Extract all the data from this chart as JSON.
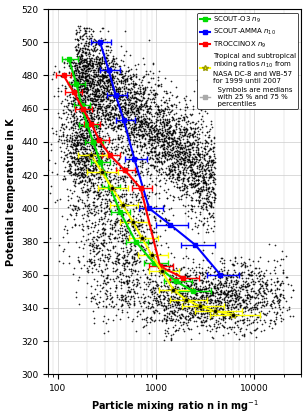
{
  "title": "",
  "xlabel": "Particle mixing ratio n in mg$^{-1}$",
  "ylabel": "Potential temperature in K",
  "xlim_log": [
    80,
    30000
  ],
  "ylim": [
    300,
    520
  ],
  "yticks": [
    300,
    320,
    340,
    360,
    380,
    400,
    420,
    440,
    460,
    480,
    500,
    520
  ],
  "background_color": "#ffffff",
  "grid_color": "#cccccc",
  "scout_o3": {
    "color": "#00dd00",
    "n": [
      130,
      155,
      175,
      200,
      230,
      270,
      340,
      430,
      620,
      950,
      1600,
      2400
    ],
    "theta": [
      490,
      475,
      462,
      450,
      440,
      428,
      413,
      398,
      380,
      367,
      356,
      350
    ],
    "xerr_lo": [
      20,
      25,
      30,
      35,
      40,
      50,
      60,
      80,
      120,
      200,
      400,
      700
    ],
    "xerr_hi": [
      30,
      35,
      40,
      50,
      60,
      70,
      90,
      120,
      200,
      380,
      700,
      1200
    ]
  },
  "scout_amma": {
    "color": "#0000ff",
    "n": [
      270,
      330,
      390,
      470,
      600,
      850,
      1400,
      2500,
      4500
    ],
    "theta": [
      500,
      483,
      468,
      453,
      430,
      400,
      390,
      378,
      360
    ],
    "xerr_lo": [
      50,
      60,
      70,
      80,
      120,
      180,
      400,
      700,
      1200
    ],
    "xerr_hi": [
      80,
      100,
      120,
      140,
      200,
      320,
      700,
      1500,
      2500
    ]
  },
  "troccinox": {
    "color": "#ff0000",
    "n": [
      115,
      145,
      180,
      220,
      265,
      340,
      480,
      700,
      1100,
      1900
    ],
    "theta": [
      480,
      470,
      460,
      451,
      441,
      432,
      423,
      412,
      365,
      358
    ],
    "xerr_lo": [
      18,
      25,
      30,
      35,
      45,
      60,
      90,
      130,
      250,
      500
    ],
    "xerr_hi": [
      22,
      32,
      42,
      52,
      65,
      90,
      130,
      200,
      400,
      800
    ]
  },
  "nasa": {
    "color": "#ffff00",
    "n": [
      220,
      280,
      360,
      460,
      580,
      720,
      900,
      1150,
      1500,
      2000,
      2800,
      4000,
      6000
    ],
    "theta": [
      432,
      422,
      412,
      402,
      392,
      382,
      372,
      362,
      351,
      345,
      341,
      338,
      336
    ],
    "xerr_lo": [
      60,
      80,
      100,
      120,
      150,
      190,
      240,
      310,
      430,
      630,
      950,
      1500,
      2500
    ],
    "xerr_hi": [
      100,
      130,
      160,
      200,
      250,
      320,
      420,
      570,
      820,
      1300,
      2100,
      3500,
      5500
    ]
  },
  "scatter_color": "#000000",
  "scatter_alpha": 0.85,
  "scatter_size": 1.5,
  "legend_labels": [
    "SCOUT-O3 $n_9$",
    "SCOUT-AMMA $n_{10}$",
    "TROCCINOX $n_9$",
    "Tropical and subtropical\nmixing ratios $n_{10}$ from\nNASA DC-8 and WB-57\nfor 1999 until 2007",
    "  Symbols are medians\n  with 25 % and 75 %\n  percentiles"
  ],
  "legend_colors": [
    "#00dd00",
    "#0000ff",
    "#ff0000",
    "#ffff00",
    "#aaaaaa"
  ]
}
